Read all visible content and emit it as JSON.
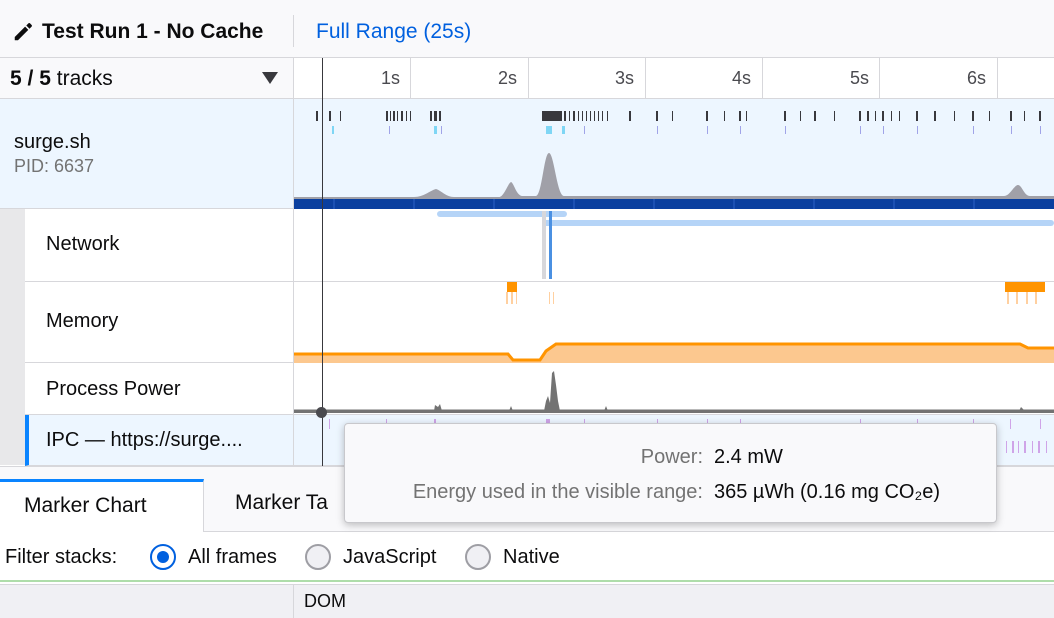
{
  "header": {
    "edit_icon": "pencil-icon",
    "profile_name": "Test Run 1 - No Cache",
    "range_label": "Full Range (25s)"
  },
  "tracks": {
    "visible": "5",
    "separator": "/",
    "total": "5",
    "suffix": "tracks",
    "menu_icon": "caret-down-icon"
  },
  "timeline": {
    "ticks": [
      "1s",
      "2s",
      "3s",
      "4s",
      "5s",
      "6s"
    ]
  },
  "process": {
    "name": "surge.sh",
    "pid": "PID: 6637"
  },
  "local_tracks": [
    "Network",
    "Memory",
    "Process Power",
    "IPC — https://surge...."
  ],
  "tooltip": {
    "power_key": "Power:",
    "power_value": "2.4 mW",
    "energy_key": "Energy used in the visible range:",
    "energy_value": "365 µWh (0.16 mg CO₂e)"
  },
  "tabs": {
    "marker_chart": "Marker Chart",
    "marker_table": "Marker Ta"
  },
  "filter": {
    "label": "Filter stacks:",
    "options": [
      "All frames",
      "JavaScript",
      "Native"
    ],
    "selected": "All frames"
  },
  "marker_header": {
    "category": "DOM"
  },
  "colors": {
    "accent": "#0060df",
    "memory": "#ff9400",
    "memory_fill": "#fcc88f",
    "network": "#0a84ff",
    "cpu_graph": "#a0a0a8"
  }
}
